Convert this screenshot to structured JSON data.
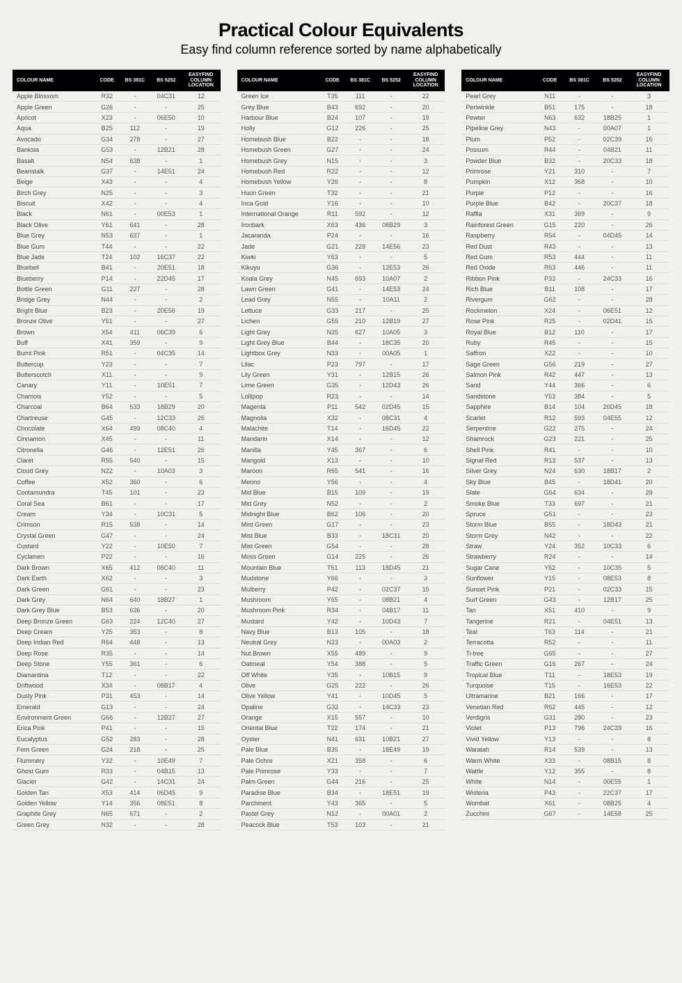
{
  "title": "Practical Colour Equivalents",
  "subtitle": "Easy find column reference sorted by name alphabetically",
  "headers": [
    "COLOUR NAME",
    "CODE",
    "BS 381C",
    "BS 5252",
    "EASYFIND COLUMN LOCATION"
  ],
  "columns": [
    [
      [
        "Apple Blossom",
        "R32",
        "-",
        "04C31",
        "12"
      ],
      [
        "Apple Green",
        "G26",
        "-",
        "-",
        "25"
      ],
      [
        "Apricot",
        "X23",
        "-",
        "06E50",
        "10"
      ],
      [
        "Aqua",
        "B25",
        "112",
        "-",
        "19"
      ],
      [
        "Avocado",
        "G34",
        "278",
        "-",
        "27"
      ],
      [
        "Banksia",
        "G53",
        "-",
        "12B21",
        "28"
      ],
      [
        "Basalt",
        "N54",
        "638",
        "-",
        "1"
      ],
      [
        "Beanstalk",
        "G37",
        "-",
        "14E51",
        "24"
      ],
      [
        "Beige",
        "X43",
        "-",
        "-",
        "4"
      ],
      [
        "Birch Grey",
        "N25",
        "-",
        "-",
        "3"
      ],
      [
        "Biscuit",
        "X42",
        "-",
        "-",
        "4"
      ],
      [
        "Black",
        "N61",
        "-",
        "00E53",
        "1"
      ],
      [
        "Black Olive",
        "Y61",
        "641",
        "-",
        "28"
      ],
      [
        "Blue Grey",
        "N53",
        "637",
        "-",
        "1"
      ],
      [
        "Blue Gum",
        "T44",
        "-",
        "-",
        "22"
      ],
      [
        "Blue Jade",
        "T24",
        "102",
        "16C37",
        "22"
      ],
      [
        "Bluebell",
        "B41",
        "-",
        "20E51",
        "18"
      ],
      [
        "Blueberry",
        "P14",
        "-",
        "22D45",
        "17"
      ],
      [
        "Bottle Green",
        "G11",
        "227",
        "-",
        "28"
      ],
      [
        "Bridge Grey",
        "N44",
        "-",
        "-",
        "2"
      ],
      [
        "Bright Blue",
        "B23",
        "-",
        "20E56",
        "19"
      ],
      [
        "Bronze Olive",
        "Y51",
        "-",
        "-",
        "27"
      ],
      [
        "Brown",
        "X54",
        "411",
        "06C39",
        "6"
      ],
      [
        "Buff",
        "X41",
        "359",
        "-",
        "9"
      ],
      [
        "Burnt Pink",
        "R51",
        "-",
        "04C35",
        "14"
      ],
      [
        "Buttercup",
        "Y23",
        "-",
        "-",
        "7"
      ],
      [
        "Butterscotch",
        "X11",
        "-",
        "-",
        "9"
      ],
      [
        "Canary",
        "Y11",
        "-",
        "10E51",
        "7"
      ],
      [
        "Chamois",
        "Y52",
        "-",
        "-",
        "5"
      ],
      [
        "Charcoal",
        "B64",
        "633",
        "18B29",
        "20"
      ],
      [
        "Chartreuse",
        "G45",
        "-",
        "12C33",
        "26"
      ],
      [
        "Chocolate",
        "X64",
        "499",
        "08C40",
        "4"
      ],
      [
        "Cinnamon",
        "X45",
        "-",
        "-",
        "11"
      ],
      [
        "Citronella",
        "G46",
        "-",
        "12E51",
        "26"
      ],
      [
        "Claret",
        "R55",
        "540",
        "-",
        "15"
      ],
      [
        "Cloud Grey",
        "N22",
        "-",
        "10A03",
        "3"
      ],
      [
        "Coffee",
        "X52",
        "360",
        "-",
        "6"
      ],
      [
        "Cootamundra",
        "T45",
        "101",
        "-",
        "23"
      ],
      [
        "Coral Sea",
        "B61",
        "-",
        "-",
        "17"
      ],
      [
        "Cream",
        "Y34",
        "-",
        "10C31",
        "5"
      ],
      [
        "Crimson",
        "R15",
        "538",
        "-",
        "14"
      ],
      [
        "Crystal Green",
        "G47",
        "-",
        "-",
        "24"
      ],
      [
        "Custard",
        "Y22",
        "-",
        "10E50",
        "7"
      ],
      [
        "Cyclamen",
        "P22",
        "-",
        "-",
        "16"
      ],
      [
        "Dark Brown",
        "X65",
        "412",
        "06C40",
        "11"
      ],
      [
        "Dark Earth",
        "X62",
        "-",
        "-",
        "3"
      ],
      [
        "Dark Green",
        "G61",
        "-",
        "-",
        "23"
      ],
      [
        "Dark Grey",
        "N64",
        "640",
        "18B27",
        "1"
      ],
      [
        "Dark Grey Blue",
        "B53",
        "636",
        "-",
        "20"
      ],
      [
        "Deep Bronze Green",
        "G63",
        "224",
        "12C40",
        "27"
      ],
      [
        "Deep Cream",
        "Y25",
        "353",
        "-",
        "8"
      ],
      [
        "Deep Indian Red",
        "R64",
        "448",
        "-",
        "13"
      ],
      [
        "Deep Rose",
        "R35",
        "-",
        "-",
        "14"
      ],
      [
        "Deep Stone",
        "Y55",
        "361",
        "-",
        "6"
      ],
      [
        "Diamantina",
        "T12",
        "-",
        "-",
        "22"
      ],
      [
        "Driftwood",
        "X34",
        "-",
        "08B17",
        "4"
      ],
      [
        "Dusty Pink",
        "P31",
        "453",
        "-",
        "14"
      ],
      [
        "Emerald",
        "G13",
        "-",
        "-",
        "24"
      ],
      [
        "Environment Green",
        "G66",
        "-",
        "12B27",
        "27"
      ],
      [
        "Erica Pink",
        "P41",
        "-",
        "-",
        "15"
      ],
      [
        "Eucalyptus",
        "G52",
        "283",
        "-",
        "28"
      ],
      [
        "Fern Green",
        "G24",
        "218",
        "-",
        "25"
      ],
      [
        "Flummery",
        "Y32",
        "-",
        "10E49",
        "7"
      ],
      [
        "Ghost Gum",
        "R33",
        "-",
        "04B15",
        "13"
      ],
      [
        "Glacier",
        "G42",
        "-",
        "14C31",
        "24"
      ],
      [
        "Golden Tan",
        "X53",
        "414",
        "06D45",
        "9"
      ],
      [
        "Golden Yellow",
        "Y14",
        "356",
        "08E51",
        "8"
      ],
      [
        "Graphite Grey",
        "N65",
        "671",
        "-",
        "2"
      ],
      [
        "Green Grey",
        "N32",
        "-",
        "-",
        "28"
      ]
    ],
    [
      [
        "Green Ice",
        "T35",
        "111",
        "-",
        "22"
      ],
      [
        "Grey Blue",
        "B43",
        "692",
        "-",
        "20"
      ],
      [
        "Harbour Blue",
        "B24",
        "107",
        "-",
        "19"
      ],
      [
        "Holly",
        "G12",
        "226",
        "-",
        "25"
      ],
      [
        "Homebush Blue",
        "B22",
        "-",
        "-",
        "18"
      ],
      [
        "Homebush Green",
        "G27",
        "-",
        "-",
        "24"
      ],
      [
        "Homebush Grey",
        "N15",
        "-",
        "-",
        "3"
      ],
      [
        "Homebush Red",
        "R22",
        "-",
        "-",
        "12"
      ],
      [
        "Homebush Yellow",
        "Y26",
        "-",
        "-",
        "8"
      ],
      [
        "Huon Green",
        "T32",
        "-",
        "-",
        "21"
      ],
      [
        "Inca Gold",
        "Y16",
        "-",
        "-",
        "10"
      ],
      [
        "International Orange",
        "R11",
        "592",
        "-",
        "12"
      ],
      [
        "Ironbark",
        "X63",
        "436",
        "08B29",
        "3"
      ],
      [
        "Jacaranda",
        "P24",
        "-",
        "-",
        "16"
      ],
      [
        "Jade",
        "G21",
        "228",
        "14E56",
        "23"
      ],
      [
        "Kiwki",
        "Y63",
        "-",
        "-",
        "5"
      ],
      [
        "Kikuyu",
        "G36",
        "-",
        "12E53",
        "26"
      ],
      [
        "Koala Grey",
        "N45",
        "693",
        "10A07",
        "2"
      ],
      [
        "Lawn Green",
        "G41",
        "-",
        "14E53",
        "24"
      ],
      [
        "Lead Grey",
        "N55",
        "-",
        "10A11",
        "2"
      ],
      [
        "Lettuce",
        "G33",
        "217",
        "-",
        "25"
      ],
      [
        "Lichen",
        "G55",
        "210",
        "12B19",
        "27"
      ],
      [
        "Light Grey",
        "N35",
        "627",
        "10A05",
        "3"
      ],
      [
        "Light Grey Blue",
        "B44",
        "-",
        "18C35",
        "20"
      ],
      [
        "Lightbox Grey",
        "N33",
        "-",
        "00A05",
        "1"
      ],
      [
        "Lilac",
        "P23",
        "797",
        "-",
        "17"
      ],
      [
        "Lily Green",
        "Y31",
        "-",
        "12B15",
        "26"
      ],
      [
        "Lime Green",
        "G35",
        "-",
        "12D43",
        "26"
      ],
      [
        "Lollipop",
        "R23",
        "-",
        "-",
        "14"
      ],
      [
        "Magenta",
        "P11",
        "542",
        "02D45",
        "15"
      ],
      [
        "Magnolia",
        "X32",
        "-",
        "08C31",
        "4"
      ],
      [
        "Malachite",
        "T14",
        "-",
        "16D45",
        "22"
      ],
      [
        "Mandarin",
        "X14",
        "-",
        "-",
        "12"
      ],
      [
        "Manilla",
        "Y45",
        "367",
        "-",
        "6"
      ],
      [
        "Marigold",
        "X13",
        "-",
        "-",
        "10"
      ],
      [
        "Maroon",
        "R65",
        "541",
        "-",
        "16"
      ],
      [
        "Merino",
        "Y56",
        "-",
        "-",
        "4"
      ],
      [
        "Mid Blue",
        "B15",
        "109",
        "-",
        "19"
      ],
      [
        "Mid Grey",
        "N52",
        "-",
        "-",
        "2"
      ],
      [
        "Midnight Blue",
        "B62",
        "106",
        "-",
        "20"
      ],
      [
        "Mint Green",
        "G17",
        "-",
        "-",
        "23"
      ],
      [
        "Mist Blue",
        "B33",
        "-",
        "18C31",
        "20"
      ],
      [
        "Mist Green",
        "G54",
        "-",
        "-",
        "28"
      ],
      [
        "Moss Green",
        "G14",
        "225",
        "-",
        "26"
      ],
      [
        "Mountain Blue",
        "T51",
        "113",
        "18D45",
        "21"
      ],
      [
        "Mudstone",
        "Y66",
        "-",
        "-",
        "3"
      ],
      [
        "Mulberry",
        "P42",
        "-",
        "02C37",
        "15"
      ],
      [
        "Mushroom",
        "Y65",
        "-",
        "08B21",
        "4"
      ],
      [
        "Mushroom Pink",
        "R34",
        "-",
        "04B17",
        "11"
      ],
      [
        "Mustard",
        "Y42",
        "-",
        "10D43",
        "7"
      ],
      [
        "Navy Blue",
        "B13",
        "105",
        "-",
        "18"
      ],
      [
        "Neutral Grey",
        "N23",
        "-",
        "00A03",
        "2"
      ],
      [
        "Nut Brown",
        "X55",
        "489",
        "-",
        "9"
      ],
      [
        "Oatmeal",
        "Y54",
        "388",
        "-",
        "5"
      ],
      [
        "Off White",
        "Y35",
        "-",
        "10B15",
        "9"
      ],
      [
        "Olive",
        "G25",
        "222",
        "-",
        "26"
      ],
      [
        "Olive Yellow",
        "Y41",
        "-",
        "10D45",
        "5"
      ],
      [
        "Opaline",
        "G32",
        "-",
        "14C33",
        "23"
      ],
      [
        "Orange",
        "X15",
        "557",
        "-",
        "10"
      ],
      [
        "Oriental Blue",
        "T22",
        "174",
        "-",
        "21"
      ],
      [
        "Oyster",
        "N41",
        "631",
        "10B21",
        "27"
      ],
      [
        "Pale Blue",
        "B35",
        "-",
        "18E49",
        "19"
      ],
      [
        "Pale Ochre",
        "X21",
        "358",
        "-",
        "6"
      ],
      [
        "Pale Primrose",
        "Y33",
        "-",
        "-",
        "7"
      ],
      [
        "Palm Green",
        "G44",
        "216",
        "-",
        "25"
      ],
      [
        "Paradise Blue",
        "B34",
        "-",
        "18E51",
        "19"
      ],
      [
        "Parchment",
        "Y43",
        "365",
        "-",
        "5"
      ],
      [
        "Pastel Grey",
        "N12",
        "-",
        "00A01",
        "2"
      ],
      [
        "Peacock Blue",
        "T53",
        "103",
        "-",
        "21"
      ]
    ],
    [
      [
        "Pearl Grey",
        "N11",
        "-",
        "-",
        "3"
      ],
      [
        "Periwinkle",
        "B51",
        "175",
        "-",
        "18"
      ],
      [
        "Pewter",
        "N63",
        "632",
        "18B25",
        "1"
      ],
      [
        "Pipeline Grey",
        "N43",
        "-",
        "00A07",
        "1"
      ],
      [
        "Plum",
        "P52",
        "-",
        "02C39",
        "16"
      ],
      [
        "Possum",
        "R44",
        "-",
        "04B21",
        "11"
      ],
      [
        "Powder Blue",
        "B32",
        "-",
        "20C33",
        "18"
      ],
      [
        "Primrose",
        "Y21",
        "310",
        "-",
        "7"
      ],
      [
        "Pumpkin",
        "X12",
        "368",
        "-",
        "10"
      ],
      [
        "Purple",
        "P12",
        "-",
        "-",
        "16"
      ],
      [
        "Purple Blue",
        "B42",
        "-",
        "20C37",
        "18"
      ],
      [
        "Raffia",
        "X31",
        "369",
        "-",
        "9"
      ],
      [
        "Rainforest Green",
        "G15",
        "220",
        "-",
        "26"
      ],
      [
        "Raspberry",
        "R54",
        "-",
        "04D45",
        "14"
      ],
      [
        "Red Dust",
        "R43",
        "-",
        "-",
        "13"
      ],
      [
        "Red Gum",
        "R53",
        "444",
        "-",
        "11"
      ],
      [
        "Red Oxide",
        "R63",
        "446",
        "-",
        "11"
      ],
      [
        "Ribbon Pink",
        "P33",
        "-",
        "24C33",
        "16"
      ],
      [
        "Rich Blue",
        "B11",
        "108",
        "-",
        "17"
      ],
      [
        "Rivergum",
        "G62",
        "-",
        "-",
        "28"
      ],
      [
        "Rockmelon",
        "X24",
        "-",
        "06E51",
        "12"
      ],
      [
        "Rose Pink",
        "R25",
        "-",
        "02D41",
        "15"
      ],
      [
        "Royal Blue",
        "B12",
        "110",
        "-",
        "17"
      ],
      [
        "Ruby",
        "R45",
        "-",
        "-",
        "15"
      ],
      [
        "Saffron",
        "X22",
        "-",
        "-",
        "10"
      ],
      [
        "Sage Green",
        "G56",
        "219",
        "-",
        "27"
      ],
      [
        "Salmon Pink",
        "R42",
        "447",
        "-",
        "13"
      ],
      [
        "Sand",
        "Y44",
        "366",
        "-",
        "6"
      ],
      [
        "Sandstone",
        "Y53",
        "384",
        "-",
        "5"
      ],
      [
        "Sapphire",
        "B14",
        "104",
        "20D45",
        "18"
      ],
      [
        "Scarlet",
        "R12",
        "593",
        "04E55",
        "12"
      ],
      [
        "Serpentine",
        "G22",
        "275",
        "-",
        "24"
      ],
      [
        "Shamrock",
        "G23",
        "221",
        "-",
        "25"
      ],
      [
        "Shell Pink",
        "R41",
        "-",
        "-",
        "10"
      ],
      [
        "Signal Red",
        "R13",
        "537",
        "-",
        "13"
      ],
      [
        "Silver Grey",
        "N24",
        "630",
        "18B17",
        "2"
      ],
      [
        "Sky Blue",
        "B45",
        "-",
        "18D41",
        "20"
      ],
      [
        "Slate",
        "G64",
        "634",
        "-",
        "28"
      ],
      [
        "Smoke Blue",
        "T33",
        "697",
        "-",
        "21"
      ],
      [
        "Spruce",
        "G51",
        "-",
        "-",
        "23"
      ],
      [
        "Storm Blue",
        "B55",
        "-",
        "18D43",
        "21"
      ],
      [
        "Storm Grey",
        "N42",
        "-",
        "-",
        "22"
      ],
      [
        "Straw",
        "Y24",
        "352",
        "10C33",
        "6"
      ],
      [
        "Strawberry",
        "R24",
        "-",
        "-",
        "14"
      ],
      [
        "Sugar Cane",
        "Y62",
        "-",
        "10C35",
        "5"
      ],
      [
        "Sunflower",
        "Y15",
        "-",
        "08E53",
        "8"
      ],
      [
        "Sunset Pink",
        "P21",
        "-",
        "02C33",
        "15"
      ],
      [
        "Surf Green",
        "G43",
        "-",
        "12B17",
        "25"
      ],
      [
        "Tan",
        "X51",
        "410",
        "-",
        "9"
      ],
      [
        "Tangerine",
        "R21",
        "-",
        "04E51",
        "13"
      ],
      [
        "Teal",
        "T63",
        "114",
        "-",
        "21"
      ],
      [
        "Terracotta",
        "R52",
        "-",
        "-",
        "11"
      ],
      [
        "Ti-tree",
        "G65",
        "-",
        "-",
        "27"
      ],
      [
        "Traffic Green",
        "G16",
        "267",
        "-",
        "24"
      ],
      [
        "Tropical Blue",
        "T11",
        "-",
        "18E53",
        "19"
      ],
      [
        "Turquoise",
        "T15",
        "-",
        "16E53",
        "22"
      ],
      [
        "Ultramarine",
        "B21",
        "166",
        "-",
        "17"
      ],
      [
        "Venetian Red",
        "R62",
        "445",
        "-",
        "12"
      ],
      [
        "Verdigris",
        "G31",
        "280",
        "-",
        "23"
      ],
      [
        "Violet",
        "P13",
        "796",
        "24C39",
        "16"
      ],
      [
        "Vivid Yellow",
        "Y13",
        "-",
        "-",
        "8"
      ],
      [
        "Waratah",
        "R14",
        "539",
        "-",
        "13"
      ],
      [
        "Warm White",
        "X33",
        "-",
        "08B15",
        "8"
      ],
      [
        "Wattle",
        "Y12",
        "355",
        "-",
        "8"
      ],
      [
        "White",
        "N14",
        "-",
        "00E55",
        "1"
      ],
      [
        "Wisteria",
        "P43",
        "-",
        "22C37",
        "17"
      ],
      [
        "Wombat",
        "X61",
        "-",
        "08B25",
        "4"
      ],
      [
        "Zucchini",
        "G67",
        "-",
        "14E58",
        "25"
      ]
    ]
  ]
}
